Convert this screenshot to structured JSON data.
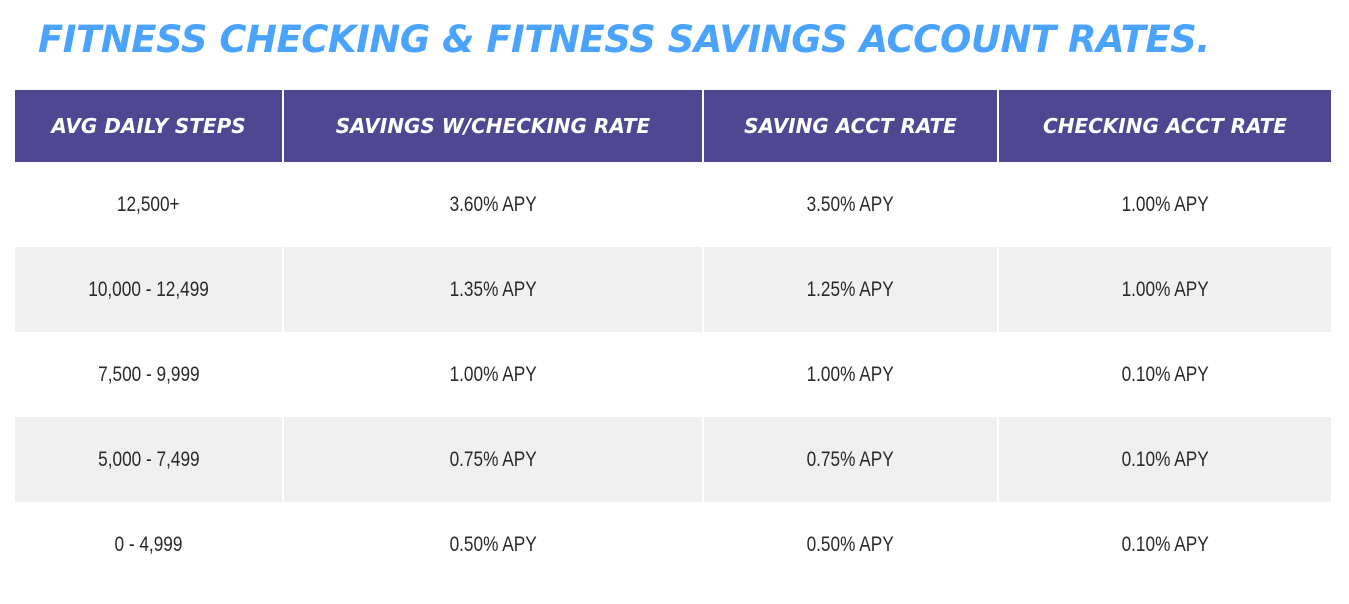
{
  "title": "FITNESS CHECKING & FITNESS SAVINGS ACCOUNT RATES.",
  "table": {
    "headers": [
      "AVG DAILY STEPS",
      "SAVINGS W/CHECKING RATE",
      "SAVING ACCT RATE",
      "CHECKING ACCT RATE"
    ],
    "rows": [
      [
        "12,500+",
        "3.60% APY",
        "3.50% APY",
        "1.00% APY"
      ],
      [
        "10,000 - 12,499",
        "1.35% APY",
        "1.25% APY",
        "1.00% APY"
      ],
      [
        "7,500 - 9,999",
        "1.00% APY",
        "1.00% APY",
        "0.10% APY"
      ],
      [
        "5,000 - 7,499",
        "0.75% APY",
        "0.75% APY",
        "0.10% APY"
      ],
      [
        "0 - 4,999",
        "0.50% APY",
        "0.50% APY",
        "0.10% APY"
      ]
    ]
  },
  "colors": {
    "title": "#4aa3ff",
    "header_bg": "#4f4792",
    "header_text": "#ffffff",
    "row_alt_bg": "#f0f0f0"
  }
}
